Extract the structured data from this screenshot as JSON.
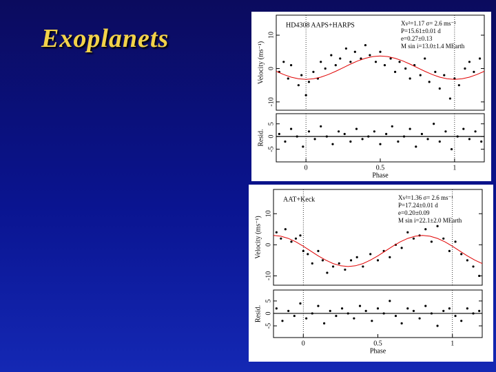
{
  "slide": {
    "title": "Exoplanets"
  },
  "chart_data": [
    {
      "type": "scatter",
      "label": "HD4308 AAPS+HARPS",
      "stats": [
        "Χν²=1.17  σ= 2.6 ms⁻¹",
        "P=15.61±0.01 d",
        "e=0.27±0.13",
        "M sin i=13.0±1.4 MEarth"
      ],
      "ylabel": "Velocity (ms⁻¹)",
      "xlim": [
        -0.2,
        1.2
      ],
      "ylim": [
        -12.5,
        16
      ],
      "yticks": [
        -10,
        0,
        10
      ],
      "vlines": [
        0,
        1
      ],
      "series": [
        {
          "mode": "markers",
          "color": "#000000",
          "x": [
            -0.18,
            -0.15,
            -0.12,
            -0.1,
            -0.05,
            -0.03,
            0.0,
            0.02,
            0.05,
            0.08,
            0.1,
            0.13,
            0.17,
            0.2,
            0.23,
            0.27,
            0.3,
            0.33,
            0.37,
            0.4,
            0.43,
            0.47,
            0.5,
            0.53,
            0.57,
            0.6,
            0.63,
            0.67,
            0.7,
            0.73,
            0.77,
            0.8,
            0.83,
            0.87,
            0.9,
            0.93,
            0.97,
            1.0,
            1.03,
            1.07,
            1.1,
            1.13,
            1.17
          ],
          "values": [
            -1,
            2,
            -3,
            1,
            -5,
            -2,
            -8,
            -4,
            -1,
            -3,
            2,
            0,
            4,
            1,
            3,
            6,
            2,
            5,
            3,
            7,
            4,
            2,
            5,
            1,
            3,
            -1,
            2,
            0,
            -3,
            1,
            -2,
            3,
            -4,
            -1,
            -6,
            -2,
            -9,
            -3,
            -5,
            0,
            2,
            -1,
            3
          ]
        },
        {
          "mode": "line",
          "color": "#e00000",
          "x": [
            -0.2,
            -0.15,
            -0.1,
            -0.05,
            0,
            0.05,
            0.1,
            0.15,
            0.2,
            0.25,
            0.3,
            0.35,
            0.4,
            0.45,
            0.5,
            0.55,
            0.6,
            0.65,
            0.7,
            0.75,
            0.8,
            0.85,
            0.9,
            0.95,
            1.0,
            1.05,
            1.1,
            1.15,
            1.2
          ],
          "values": [
            -0.83,
            -1.81,
            -2.58,
            -3.08,
            -3.25,
            -3.08,
            -2.58,
            -1.81,
            -0.83,
            0.25,
            1.33,
            2.31,
            3.08,
            3.58,
            3.75,
            3.58,
            3.08,
            2.31,
            1.33,
            0.25,
            -0.83,
            -1.81,
            -2.58,
            -3.08,
            -3.25,
            -3.08,
            -2.58,
            -1.81,
            -0.83
          ]
        }
      ]
    },
    {
      "type": "scatter",
      "ylabel": "Resid.",
      "xlabel": "Phase",
      "xlim": [
        -0.2,
        1.2
      ],
      "ylim": [
        -10,
        9
      ],
      "xticks": [
        0,
        0.5,
        1
      ],
      "yticks": [
        -5,
        0,
        5
      ],
      "vlines": [
        0,
        1
      ],
      "hline": 0,
      "series": [
        {
          "mode": "markers",
          "color": "#000000",
          "x": [
            -0.18,
            -0.14,
            -0.1,
            -0.06,
            -0.02,
            0.02,
            0.06,
            0.1,
            0.14,
            0.18,
            0.22,
            0.26,
            0.3,
            0.34,
            0.38,
            0.42,
            0.46,
            0.5,
            0.54,
            0.58,
            0.62,
            0.66,
            0.7,
            0.74,
            0.78,
            0.82,
            0.86,
            0.9,
            0.94,
            0.98,
            1.02,
            1.06,
            1.1,
            1.14,
            1.18
          ],
          "values": [
            1,
            -2,
            3,
            0,
            -4,
            2,
            -1,
            4,
            0,
            -3,
            2,
            1,
            -2,
            3,
            -1,
            0,
            2,
            -3,
            1,
            4,
            -2,
            0,
            3,
            -4,
            1,
            -1,
            5,
            -2,
            2,
            -5,
            0,
            3,
            -1,
            2,
            -2
          ]
        }
      ]
    },
    {
      "type": "scatter",
      "label": "AAT+Keck",
      "stats": [
        "Χν²=1.36  σ= 2.6 ms⁻¹",
        "P=17.24±0.01 d",
        "e=0.20±0.09",
        "M sin i=22.1±2.0 MEarth"
      ],
      "ylabel": "Velocity (ms⁻¹)",
      "xlim": [
        -0.2,
        1.2
      ],
      "ylim": [
        -13,
        17.8
      ],
      "yticks": [
        -10,
        0,
        10
      ],
      "vlines": [
        0,
        1
      ],
      "series": [
        {
          "mode": "markers",
          "color": "#000000",
          "x": [
            -0.18,
            -0.15,
            -0.12,
            -0.08,
            -0.05,
            -0.02,
            0.0,
            0.03,
            0.06,
            0.1,
            0.13,
            0.16,
            0.2,
            0.24,
            0.28,
            0.32,
            0.36,
            0.4,
            0.45,
            0.5,
            0.54,
            0.58,
            0.62,
            0.66,
            0.7,
            0.74,
            0.78,
            0.82,
            0.86,
            0.9,
            0.94,
            0.98,
            1.02,
            1.06,
            1.1,
            1.14,
            1.18
          ],
          "values": [
            4,
            2,
            5,
            1,
            2,
            3,
            -2,
            -3,
            -6,
            -2,
            -5,
            -9,
            -7,
            -6,
            -8,
            -5,
            -4,
            -7,
            -3,
            -5,
            -2,
            -4,
            0,
            -1,
            4,
            2,
            3,
            5,
            1,
            6,
            2,
            -2,
            1,
            -3,
            -5,
            -7,
            -10
          ]
        },
        {
          "mode": "line",
          "color": "#e00000",
          "x": [
            -0.2,
            -0.15,
            -0.1,
            -0.05,
            0,
            0.05,
            0.1,
            0.15,
            0.2,
            0.25,
            0.3,
            0.35,
            0.4,
            0.45,
            0.5,
            0.55,
            0.6,
            0.65,
            0.7,
            0.75,
            0.8,
            0.85,
            0.9,
            0.95,
            1.0,
            1.05,
            1.1,
            1.15,
            1.2
          ],
          "values": [
            3,
            2.76,
            2.05,
            0.94,
            -0.46,
            -2,
            -3.55,
            -4.94,
            -6.05,
            -6.76,
            -7,
            -6.76,
            -6.05,
            -4.94,
            -3.55,
            -2,
            -0.46,
            0.94,
            2.05,
            2.76,
            3,
            2.76,
            2.05,
            0.94,
            -0.46,
            -2,
            -3.55,
            -4.94,
            -6.05
          ]
        }
      ]
    },
    {
      "type": "scatter",
      "ylabel": "Resid.",
      "xlabel": "Phase",
      "xlim": [
        -0.2,
        1.2
      ],
      "ylim": [
        -9.7,
        9.4
      ],
      "xticks": [
        0,
        0.5,
        1
      ],
      "yticks": [
        -5,
        0,
        5
      ],
      "vlines": [
        0,
        1
      ],
      "hline": 0,
      "series": [
        {
          "mode": "markers",
          "color": "#000000",
          "x": [
            -0.18,
            -0.14,
            -0.1,
            -0.06,
            -0.02,
            0.02,
            0.06,
            0.1,
            0.14,
            0.18,
            0.22,
            0.26,
            0.3,
            0.34,
            0.38,
            0.42,
            0.46,
            0.5,
            0.54,
            0.58,
            0.62,
            0.66,
            0.7,
            0.74,
            0.78,
            0.82,
            0.86,
            0.9,
            0.94,
            0.98,
            1.02,
            1.06,
            1.1,
            1.14,
            1.18
          ],
          "values": [
            2,
            -3,
            1,
            -1,
            4,
            -2,
            0,
            3,
            -4,
            1,
            -1,
            2,
            0,
            -2,
            3,
            1,
            -3,
            2,
            0,
            5,
            -1,
            -4,
            2,
            1,
            -2,
            3,
            0,
            -5,
            1,
            2,
            -1,
            -3,
            2,
            0,
            1
          ]
        }
      ]
    }
  ]
}
